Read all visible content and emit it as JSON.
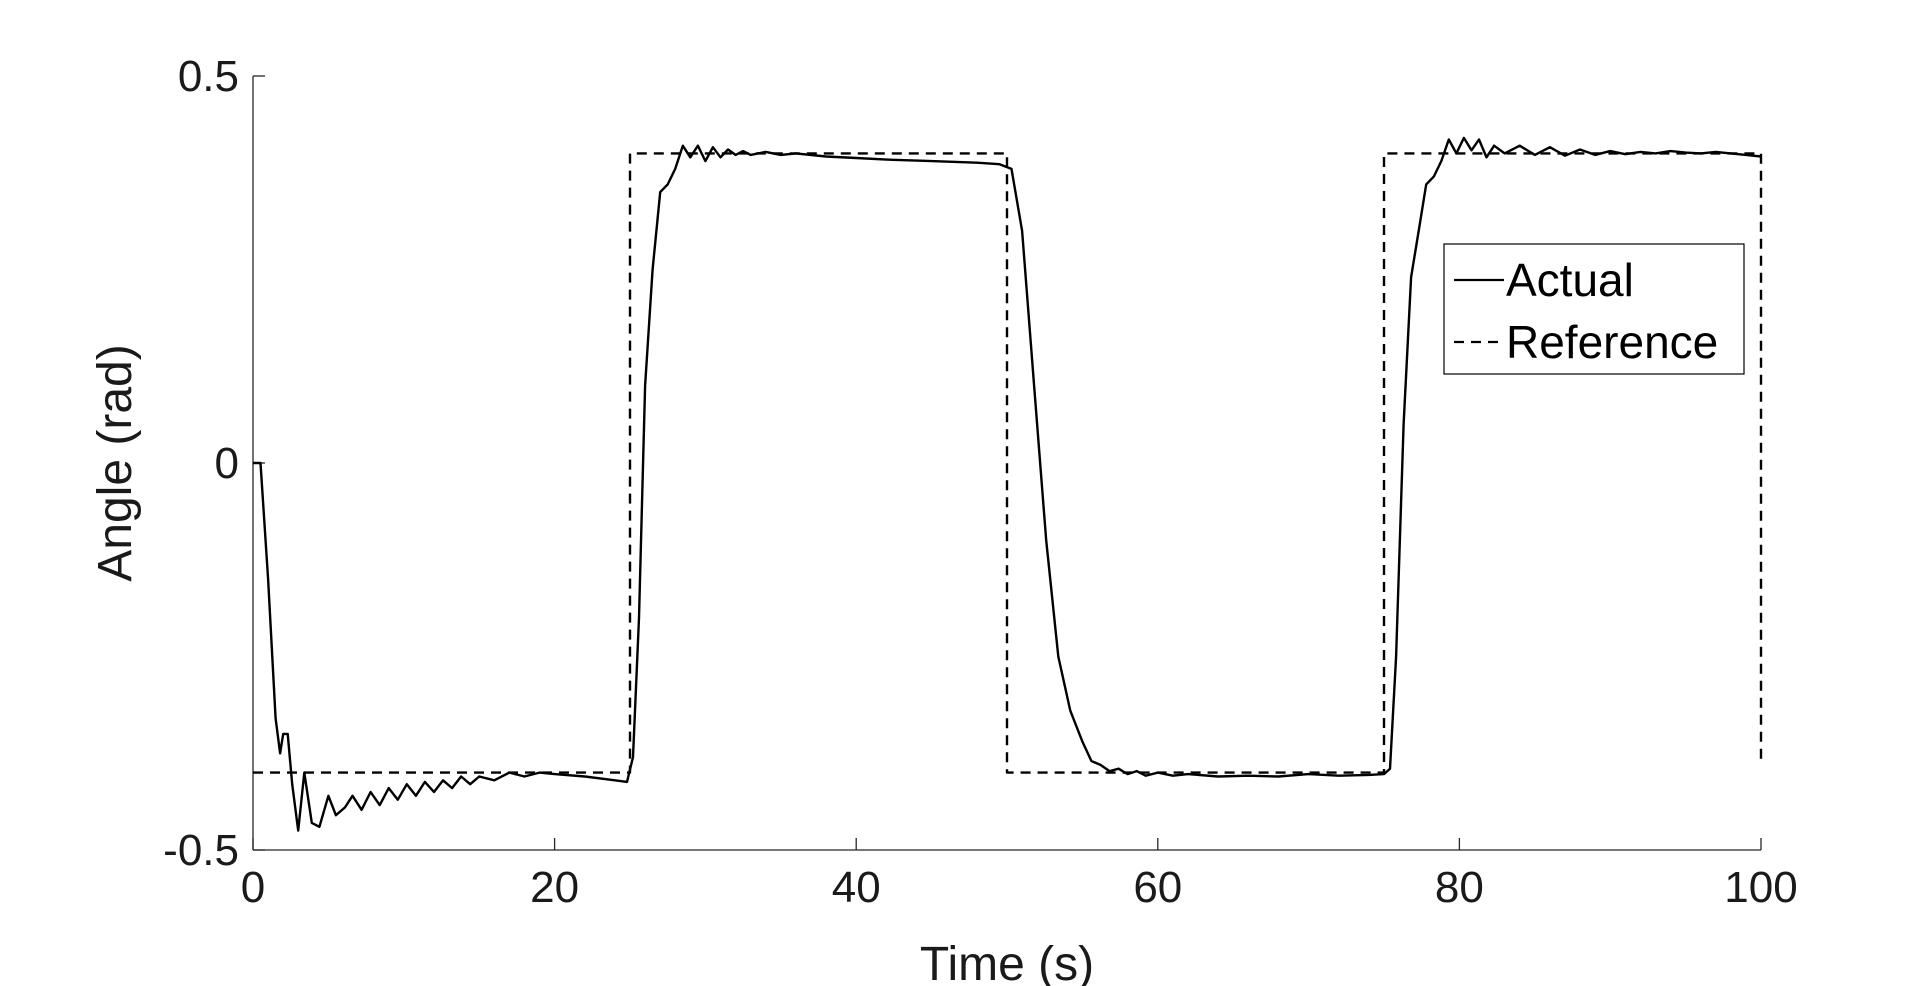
{
  "chart_data": {
    "type": "line",
    "title": "",
    "xlabel": "Time (s)",
    "ylabel": "Angle (rad)",
    "xlim": [
      0,
      100
    ],
    "ylim": [
      -0.5,
      0.5
    ],
    "xticks": [
      0,
      20,
      40,
      60,
      80,
      100
    ],
    "xtick_labels": [
      "0",
      "20",
      "40",
      "60",
      "80",
      "100"
    ],
    "yticks": [
      -0.5,
      0,
      0.5
    ],
    "ytick_labels": [
      "-0.5",
      "0",
      "0.5"
    ],
    "grid": false,
    "legend_position": "top-right",
    "series": [
      {
        "name": "Actual",
        "style": "solid",
        "color": "#000000",
        "x": [
          0,
          0.5,
          1.0,
          1.5,
          1.8,
          2.0,
          2.3,
          2.6,
          3.0,
          3.4,
          3.9,
          4.4,
          5.0,
          5.5,
          6.1,
          6.6,
          7.2,
          7.8,
          8.4,
          9.0,
          9.6,
          10.2,
          10.8,
          11.4,
          12.0,
          12.6,
          13.2,
          13.8,
          14.4,
          15.0,
          16,
          17,
          18,
          19,
          20,
          22,
          24,
          24.8,
          25.2,
          25.6,
          26.0,
          26.5,
          27.0,
          27.5,
          28.0,
          28.5,
          29.0,
          29.5,
          30.0,
          30.5,
          31.0,
          31.5,
          32.0,
          32.5,
          33.0,
          34,
          35,
          36,
          38,
          40,
          42,
          45,
          48,
          49.5,
          50.3,
          51.0,
          51.8,
          52.6,
          53.4,
          54.2,
          55.0,
          55.6,
          56.2,
          56.8,
          57.4,
          58.0,
          58.6,
          59.2,
          60,
          61,
          62,
          64,
          66,
          68,
          70,
          72,
          74,
          75.0,
          75.4,
          75.8,
          76.3,
          76.8,
          77.3,
          77.8,
          78.3,
          78.8,
          79.3,
          79.8,
          80.3,
          80.8,
          81.3,
          81.8,
          82.3,
          83,
          84,
          85,
          86,
          87,
          88,
          89,
          90,
          91,
          92,
          93,
          94,
          95,
          96,
          97,
          98,
          99,
          100
        ],
        "y": [
          0.0,
          0.0,
          -0.15,
          -0.33,
          -0.375,
          -0.35,
          -0.35,
          -0.415,
          -0.475,
          -0.4,
          -0.465,
          -0.47,
          -0.43,
          -0.455,
          -0.445,
          -0.43,
          -0.448,
          -0.425,
          -0.442,
          -0.42,
          -0.435,
          -0.415,
          -0.43,
          -0.412,
          -0.425,
          -0.41,
          -0.42,
          -0.405,
          -0.415,
          -0.405,
          -0.41,
          -0.4,
          -0.405,
          -0.4,
          -0.402,
          -0.405,
          -0.41,
          -0.412,
          -0.38,
          -0.2,
          0.1,
          0.25,
          0.35,
          0.36,
          0.38,
          0.41,
          0.395,
          0.41,
          0.39,
          0.408,
          0.395,
          0.405,
          0.398,
          0.403,
          0.398,
          0.402,
          0.398,
          0.4,
          0.396,
          0.394,
          0.392,
          0.39,
          0.388,
          0.386,
          0.38,
          0.3,
          0.1,
          -0.1,
          -0.25,
          -0.32,
          -0.36,
          -0.385,
          -0.39,
          -0.398,
          -0.395,
          -0.402,
          -0.398,
          -0.404,
          -0.4,
          -0.404,
          -0.402,
          -0.405,
          -0.404,
          -0.405,
          -0.402,
          -0.404,
          -0.403,
          -0.402,
          -0.395,
          -0.25,
          0.05,
          0.24,
          0.3,
          0.36,
          0.37,
          0.39,
          0.418,
          0.4,
          0.42,
          0.404,
          0.418,
          0.395,
          0.41,
          0.4,
          0.41,
          0.398,
          0.408,
          0.397,
          0.405,
          0.398,
          0.403,
          0.399,
          0.402,
          0.4,
          0.403,
          0.401,
          0.4,
          0.402,
          0.4,
          0.398,
          0.396
        ]
      },
      {
        "name": "Reference",
        "style": "dashed",
        "color": "#000000",
        "x": [
          0,
          25,
          25,
          50,
          50,
          75,
          75,
          100,
          100
        ],
        "y": [
          -0.4,
          -0.4,
          0.4,
          0.4,
          -0.4,
          -0.4,
          0.4,
          0.4,
          -0.39
        ]
      }
    ]
  }
}
